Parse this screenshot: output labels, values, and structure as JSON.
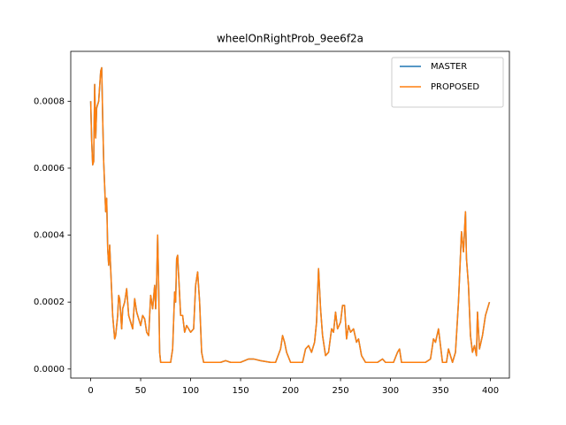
{
  "chart_data": {
    "type": "line",
    "title": "wheelOnRightProb_9ee6f2a",
    "x": [
      0,
      1,
      2,
      3,
      4,
      5,
      6,
      8,
      10,
      11,
      12,
      13,
      15,
      16,
      17,
      18,
      19,
      20,
      22,
      24,
      25,
      27,
      28,
      29,
      31,
      32,
      34,
      36,
      38,
      40,
      42,
      44,
      46,
      48,
      50,
      52,
      54,
      56,
      58,
      60,
      62,
      64,
      65,
      66,
      67,
      68,
      69,
      70,
      80,
      82,
      84,
      85,
      86,
      87,
      88,
      90,
      92,
      94,
      96,
      98,
      100,
      103,
      105,
      107,
      109,
      111,
      113,
      130,
      135,
      140,
      150,
      158,
      163,
      170,
      180,
      185,
      190,
      192,
      194,
      196,
      200,
      212,
      215,
      218,
      221,
      224,
      226,
      228,
      230,
      232,
      235,
      238,
      241,
      243,
      245,
      247,
      250,
      252,
      254,
      256,
      258,
      260,
      263,
      266,
      268,
      271,
      275,
      287,
      292,
      295,
      303,
      307,
      309,
      311,
      335,
      340,
      343,
      345,
      348,
      350,
      352,
      356,
      358,
      360,
      362,
      365,
      368,
      371,
      373,
      375,
      376,
      378,
      380,
      382,
      384,
      386,
      387,
      389,
      392,
      395,
      399
    ],
    "series": [
      {
        "name": "MASTER",
        "color": "#1f77b4",
        "values": [
          0.0008,
          0.00068,
          0.00061,
          0.00062,
          0.00085,
          0.00069,
          0.00078,
          0.0008,
          0.00089,
          0.0009,
          0.00075,
          0.00062,
          0.00047,
          0.00051,
          0.00036,
          0.00031,
          0.00037,
          0.0003,
          0.00016,
          9e-05,
          0.0001,
          0.00016,
          0.00022,
          0.00021,
          0.00012,
          0.00018,
          0.0002,
          0.00024,
          0.00016,
          0.00014,
          0.00012,
          0.00021,
          0.00017,
          0.00015,
          0.00013,
          0.00016,
          0.00015,
          0.00011,
          0.0001,
          0.00022,
          0.00018,
          0.00025,
          0.00018,
          0.00026,
          0.0004,
          0.00025,
          5e-05,
          2e-05,
          2e-05,
          6e-05,
          0.00023,
          0.0002,
          0.00033,
          0.00034,
          0.00028,
          0.00016,
          0.00016,
          0.00011,
          0.00013,
          0.00012,
          0.00011,
          0.00012,
          0.00025,
          0.00029,
          0.0002,
          5e-05,
          2e-05,
          2e-05,
          2.5e-05,
          2e-05,
          2e-05,
          3e-05,
          3e-05,
          2.5e-05,
          2e-05,
          2e-05,
          6e-05,
          0.0001,
          8e-05,
          5e-05,
          2e-05,
          2e-05,
          6e-05,
          7e-05,
          5e-05,
          8e-05,
          0.00014,
          0.0003,
          0.00018,
          0.0001,
          4e-05,
          5e-05,
          0.00012,
          0.00011,
          0.00017,
          0.00012,
          0.00014,
          0.00019,
          0.00019,
          9e-05,
          0.00013,
          0.00011,
          0.00012,
          8e-05,
          9e-05,
          4e-05,
          2e-05,
          2e-05,
          3e-05,
          2e-05,
          2e-05,
          5e-05,
          6e-05,
          2e-05,
          2e-05,
          3e-05,
          9e-05,
          8e-05,
          0.00012,
          7e-05,
          2e-05,
          2e-05,
          6e-05,
          4e-05,
          2e-05,
          5e-05,
          0.0002,
          0.00041,
          0.00035,
          0.00047,
          0.00033,
          0.00025,
          0.0001,
          5e-05,
          7e-05,
          4e-05,
          0.00017,
          6e-05,
          0.0001,
          0.00016,
          0.0002
        ]
      },
      {
        "name": "PROPOSED",
        "color": "#ff7f0e",
        "values": [
          0.0008,
          0.00068,
          0.00061,
          0.00062,
          0.00085,
          0.00069,
          0.00078,
          0.0008,
          0.00089,
          0.0009,
          0.00075,
          0.00062,
          0.00047,
          0.00051,
          0.00036,
          0.00031,
          0.00037,
          0.0003,
          0.00016,
          9e-05,
          0.0001,
          0.00016,
          0.00022,
          0.00021,
          0.00012,
          0.00018,
          0.0002,
          0.00024,
          0.00016,
          0.00014,
          0.00012,
          0.00021,
          0.00017,
          0.00015,
          0.00013,
          0.00016,
          0.00015,
          0.00011,
          0.0001,
          0.00022,
          0.00018,
          0.00025,
          0.00018,
          0.00026,
          0.0004,
          0.00025,
          5e-05,
          2e-05,
          2e-05,
          6e-05,
          0.00023,
          0.0002,
          0.00033,
          0.00034,
          0.00028,
          0.00016,
          0.00016,
          0.00011,
          0.00013,
          0.00012,
          0.00011,
          0.00012,
          0.00025,
          0.00029,
          0.0002,
          5e-05,
          2e-05,
          2e-05,
          2.5e-05,
          2e-05,
          2e-05,
          3e-05,
          3e-05,
          2.5e-05,
          2e-05,
          2e-05,
          6e-05,
          0.0001,
          8e-05,
          5e-05,
          2e-05,
          2e-05,
          6e-05,
          7e-05,
          5e-05,
          8e-05,
          0.00014,
          0.0003,
          0.00018,
          0.0001,
          4e-05,
          5e-05,
          0.00012,
          0.00011,
          0.00017,
          0.00012,
          0.00014,
          0.00019,
          0.00019,
          9e-05,
          0.00013,
          0.00011,
          0.00012,
          8e-05,
          9e-05,
          4e-05,
          2e-05,
          2e-05,
          3e-05,
          2e-05,
          2e-05,
          5e-05,
          6e-05,
          2e-05,
          2e-05,
          3e-05,
          9e-05,
          8e-05,
          0.00012,
          7e-05,
          2e-05,
          2e-05,
          6e-05,
          4e-05,
          2e-05,
          5e-05,
          0.0002,
          0.00041,
          0.00035,
          0.00047,
          0.00033,
          0.00025,
          0.0001,
          5e-05,
          7e-05,
          4e-05,
          0.00017,
          6e-05,
          0.0001,
          0.00016,
          0.0002
        ]
      }
    ],
    "xlim": [
      -19.95,
      418.95
    ],
    "xticks": [
      0,
      50,
      100,
      150,
      200,
      250,
      300,
      350,
      400
    ],
    "ylim": [
      -2.7e-05,
      0.000949
    ],
    "yticks": [
      {
        "value": 0,
        "label": "0.0000"
      },
      {
        "value": 0.0002,
        "label": "0.0002"
      },
      {
        "value": 0.0004,
        "label": "0.0004"
      },
      {
        "value": 0.0006,
        "label": "0.0006"
      },
      {
        "value": 0.0008,
        "label": "0.0008"
      }
    ],
    "grid": false,
    "legend": "upper right"
  }
}
